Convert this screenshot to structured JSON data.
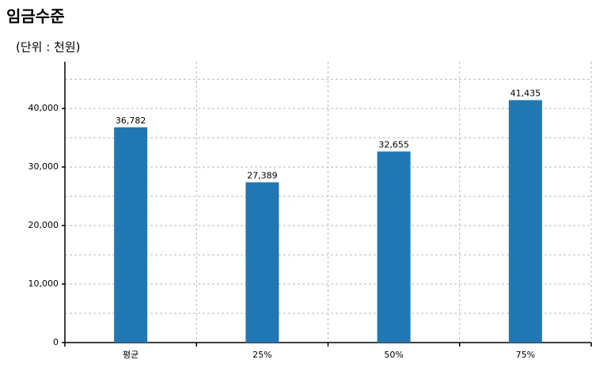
{
  "chart_data": {
    "type": "bar",
    "title": "임금수준",
    "subtitle": "(단위 : 천원)",
    "categories": [
      "평균",
      "25%",
      "50%",
      "75%"
    ],
    "values": [
      36782,
      27389,
      32655,
      41435
    ],
    "value_labels": [
      "36,782",
      "27,389",
      "32,655",
      "41,435"
    ],
    "color": "#1f77b4",
    "ylim": [
      0,
      48000
    ],
    "yticks": [
      0,
      {
        "value": 10000,
        "label": "10,000"
      },
      {
        "value": 20000,
        "label": "20,000"
      },
      {
        "value": 30000,
        "label": "30,000"
      },
      {
        "value": 40000,
        "label": "40,000"
      }
    ],
    "minor_yticks": [
      5000,
      15000,
      25000,
      35000,
      45000
    ],
    "grid": true
  }
}
